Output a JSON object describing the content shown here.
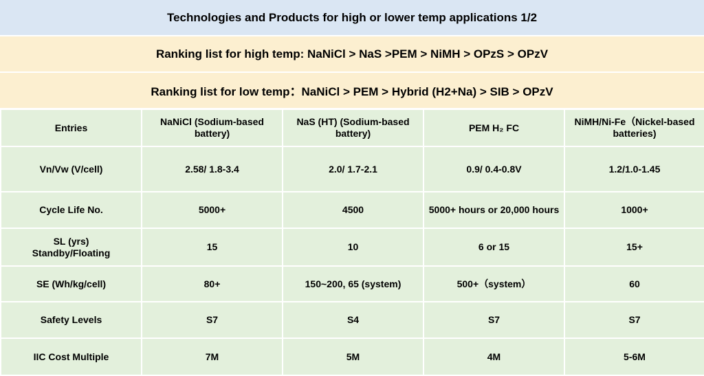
{
  "title": "Technologies and Products for high or lower temp applications 1/2",
  "ranking_high": "Ranking list for high temp: NaNiCl > NaS >PEM > NiMH > OPzS > OPzV",
  "ranking_low": "Ranking list for low temp：NaNiCl > PEM > Hybrid (H2+Na) > SIB > OPzV",
  "table": {
    "headers": [
      "Entries",
      "NaNiCl (Sodium-based battery)",
      "NaS (HT)  (Sodium-based battery)",
      "PEM H₂ FC",
      "NiMH/Ni-Fe（Nickel-based batteries)"
    ],
    "rows": [
      [
        "Vn/Vw (V/cell)",
        "2.58/ 1.8-3.4",
        "2.0/ 1.7-2.1",
        "0.9/ 0.4-0.8V",
        "1.2/1.0-1.45"
      ],
      [
        "Cycle Life No.",
        "5000+",
        "4500",
        "5000+ hours  or 20,000 hours",
        "1000+"
      ],
      [
        "SL (yrs)\nStandby/Floating",
        "15",
        "10",
        "6 or 15",
        "15+"
      ],
      [
        "SE (Wh/kg/cell)",
        "80+",
        "150~200, 65 (system)",
        "500+（system）",
        "60"
      ],
      [
        "Safety Levels",
        "S7",
        "S4",
        "S7",
        "S7"
      ],
      [
        "IIC Cost Multiple",
        "7M",
        "5M",
        "4M",
        "5-6M"
      ]
    ]
  },
  "colors": {
    "title_bg": "#dae6f3",
    "ranking_bg": "#fcefd0",
    "table_bg": "#e3f0dc",
    "grid_lines": "#ffffff"
  }
}
